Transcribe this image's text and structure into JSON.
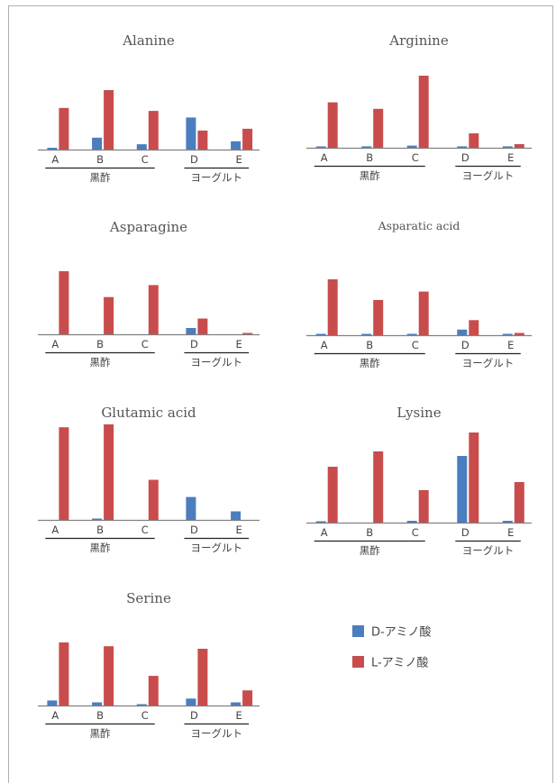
{
  "colors": {
    "d": "#4a7ebf",
    "l": "#c94c4c"
  },
  "legend": [
    {
      "label": "D-アミノ酸",
      "color": "#4a7ebf"
    },
    {
      "label": "L-アミノ酸",
      "color": "#c94c4c"
    }
  ],
  "chart_data": [
    {
      "type": "bar",
      "title": "Alanine",
      "categories": [
        "A",
        "B",
        "C",
        "D",
        "E"
      ],
      "groups": [
        {
          "label": "黒酢",
          "categories": [
            "A",
            "B",
            "C"
          ]
        },
        {
          "label": "ヨーグルト",
          "categories": [
            "D",
            "E"
          ]
        }
      ],
      "series": [
        {
          "name": "D-アミノ酸",
          "values": [
            0.03,
            0.2,
            0.09,
            0.54,
            0.14
          ]
        },
        {
          "name": "L-アミノ酸",
          "values": [
            0.7,
            1.0,
            0.65,
            0.32,
            0.35
          ]
        }
      ]
    },
    {
      "type": "bar",
      "title": "Arginine",
      "categories": [
        "A",
        "B",
        "C",
        "D",
        "E"
      ],
      "groups": [
        {
          "label": "黒酢",
          "categories": [
            "A",
            "B",
            "C"
          ]
        },
        {
          "label": "ヨーグルト",
          "categories": [
            "D",
            "E"
          ]
        }
      ],
      "series": [
        {
          "name": "D-アミノ酸",
          "values": [
            0.01,
            0.02,
            0.03,
            0.02,
            0.02
          ]
        },
        {
          "name": "L-アミノ酸",
          "values": [
            0.63,
            0.54,
            1.0,
            0.2,
            0.05
          ]
        }
      ]
    },
    {
      "type": "bar",
      "title": "Asparagine",
      "categories": [
        "A",
        "B",
        "C",
        "D",
        "E"
      ],
      "groups": [
        {
          "label": "黒酢",
          "categories": [
            "A",
            "B",
            "C"
          ]
        },
        {
          "label": "ヨーグルト",
          "categories": [
            "D",
            "E"
          ]
        }
      ],
      "series": [
        {
          "name": "D-アミノ酸",
          "values": [
            0.0,
            0.0,
            0.0,
            0.1,
            0.0
          ]
        },
        {
          "name": "L-アミノ酸",
          "values": [
            1.0,
            0.59,
            0.78,
            0.25,
            0.02
          ]
        }
      ]
    },
    {
      "type": "bar",
      "title": "Asparatic acid",
      "categories": [
        "A",
        "B",
        "C",
        "D",
        "E"
      ],
      "groups": [
        {
          "label": "黒酢",
          "categories": [
            "A",
            "B",
            "C"
          ]
        },
        {
          "label": "ヨーグルト",
          "categories": [
            "D",
            "E"
          ]
        }
      ],
      "series": [
        {
          "name": "D-アミノ酸",
          "values": [
            0.02,
            0.02,
            0.02,
            0.1,
            0.01
          ]
        },
        {
          "name": "L-アミノ酸",
          "values": [
            1.0,
            0.63,
            0.78,
            0.27,
            0.04
          ]
        }
      ]
    },
    {
      "type": "bar",
      "title": "Glutamic acid",
      "categories": [
        "A",
        "B",
        "C",
        "D",
        "E"
      ],
      "groups": [
        {
          "label": "黒酢",
          "categories": [
            "A",
            "B",
            "C"
          ]
        },
        {
          "label": "ヨーグルト",
          "categories": [
            "D",
            "E"
          ]
        }
      ],
      "series": [
        {
          "name": "D-アミノ酸",
          "values": [
            0.0,
            0.01,
            0.0,
            0.24,
            0.09
          ]
        },
        {
          "name": "L-アミノ酸",
          "values": [
            0.97,
            1.0,
            0.42,
            0.0,
            0.0
          ]
        }
      ]
    },
    {
      "type": "bar",
      "title": "Lysine",
      "categories": [
        "A",
        "B",
        "C",
        "D",
        "E"
      ],
      "groups": [
        {
          "label": "黒酢",
          "categories": [
            "A",
            "B",
            "C"
          ]
        },
        {
          "label": "ヨーグルト",
          "categories": [
            "D",
            "E"
          ]
        }
      ],
      "series": [
        {
          "name": "D-アミノ酸",
          "values": [
            0.01,
            0.0,
            0.02,
            0.74,
            0.02
          ]
        },
        {
          "name": "L-アミノ酸",
          "values": [
            0.62,
            0.79,
            0.36,
            1.0,
            0.45
          ]
        }
      ]
    },
    {
      "type": "bar",
      "title": "Serine",
      "categories": [
        "A",
        "B",
        "C",
        "D",
        "E"
      ],
      "groups": [
        {
          "label": "黒酢",
          "categories": [
            "A",
            "B",
            "C"
          ]
        },
        {
          "label": "ヨーグルト",
          "categories": [
            "D",
            "E"
          ]
        }
      ],
      "series": [
        {
          "name": "D-アミノ酸",
          "values": [
            0.08,
            0.05,
            0.02,
            0.11,
            0.05
          ]
        },
        {
          "name": "L-アミノ酸",
          "values": [
            1.0,
            0.94,
            0.47,
            0.9,
            0.24
          ]
        }
      ]
    }
  ]
}
